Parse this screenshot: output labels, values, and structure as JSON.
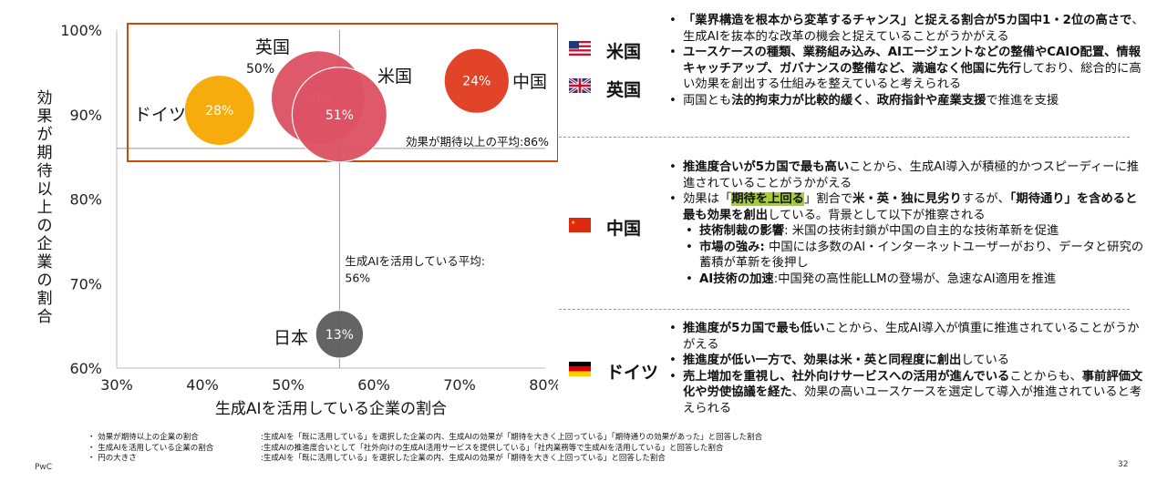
{
  "chart_data": {
    "type": "bubble",
    "xlabel": "生成AIを活用している企業の割合",
    "ylabel": "効果が期待以上の企業の割合",
    "xlim": [
      30,
      80
    ],
    "ylim": [
      60,
      100
    ],
    "x_ticks": [
      "30%",
      "40%",
      "50%",
      "60%",
      "70%",
      "80%"
    ],
    "y_ticks": [
      "60%",
      "70%",
      "80%",
      "90%",
      "100%"
    ],
    "points": [
      {
        "name": "ドイツ",
        "x": 42,
        "y": 90.5,
        "value": 28,
        "value_label": "28%",
        "color": "#f5a800"
      },
      {
        "name": "英国",
        "x": 53.5,
        "y": 92,
        "value": 50,
        "value_label": "50%",
        "color": "#dd5264"
      },
      {
        "name": "米国",
        "x": 56,
        "y": 90,
        "value": 51,
        "value_label": "51%",
        "color": "#dd5264"
      },
      {
        "name": "中国",
        "x": 72,
        "y": 94,
        "value": 24,
        "value_label": "24%",
        "color": "#e03a1e"
      },
      {
        "name": "日本",
        "x": 56,
        "y": 64,
        "value": 13,
        "value_label": "13%",
        "color": "#5c5c5c"
      }
    ],
    "avg_y": {
      "value": 86,
      "label": "効果が期待以上の平均:86%"
    },
    "avg_x": {
      "value": 56,
      "label_line1": "生成AIを活用している平均:",
      "label_line2": "56%"
    },
    "highlight_box_color": "#d04a02"
  },
  "right_panel": {
    "us": {
      "name": "米国"
    },
    "uk": {
      "name": "英国"
    },
    "cn": {
      "name": "中国"
    },
    "de": {
      "name": "ドイツ"
    },
    "us_uk_bullets": {
      "b1_bold": "「業界構造を根本から変革するチャンス」と捉える割合が5カ国中1・2位の高さで",
      "b1_rest": "、生成AIを抜本的な改革の機会と捉えていることがうかがえる",
      "b2_bold": "ユースケースの種類、業務組み込み、AIエージェントなどの整備やCAIO配置、情報キャッチアップ、ガバナンスの整備など、満遍なく他国に先行",
      "b2_rest": "しており、総合的に高い効果を創出する仕組みを整えていると考えられる",
      "b3_pre": "両国とも",
      "b3_bold1": "法的拘束力が比較的緩く",
      "b3_mid": "、",
      "b3_bold2": "政府指針や産業支援",
      "b3_end": "で推進を支援"
    },
    "cn_bullets": {
      "b1_bold": "推進度合いが5カ国で最も高い",
      "b1_rest": "ことから、生成AI導入が積極的かつスピーディーに推進されていることがうかがえる",
      "b2_pre": "効果は「",
      "b2_hl": "期待を上回る",
      "b2_mid": "」割合で",
      "b2_bold1": "米・英・独に見劣り",
      "b2_mid2": "するが、",
      "b2_bold2": "「期待通り」を含めると最も効果を創出",
      "b2_end": "している。背景として以下が推察される",
      "s1_bold": "技術制裁の影響",
      "s1_rest": ": 米国の技術封鎖が中国の自主的な技術革新を促進",
      "s2_bold": "市場の強み:",
      "s2_rest": " 中国には多数のAI・インターネットユーザーがおり、データと研究の蓄積が革新を後押し",
      "s3_bold": "AI技術の加速",
      "s3_rest": ":中国発の高性能LLMの登場が、急速なAI適用を推進"
    },
    "de_bullets": {
      "b1_bold": "推進度が5カ国で最も低い",
      "b1_rest": "ことから、生成AI導入が慎重に推進されていることがうかがえる",
      "b2_bold": "推進度が低い一方で、効果は米・英と同程度に創出",
      "b2_rest": "している",
      "b3_bold1": "売上増加を重視し、社外向けサービスへの活用が進んでいる",
      "b3_mid": "ことからも、",
      "b3_bold2": "事前評価文化や労使協議を経た",
      "b3_end": "、効果の高いユースケースを選定して導入が推進されていると考えられる"
    }
  },
  "footnotes": [
    {
      "key": "・ 効果が期待以上の企業の割合",
      "value": ":生成AIを「既に活用している」を選択した企業の内、生成AIの効果が「期待を大きく上回っている」「期待通りの効果があった」と回答した割合"
    },
    {
      "key": "・ 生成AIを活用している企業の割合",
      "value": ":生成AIの推進度合いとして「社外向けの生成AI活用サービスを提供している」「社内業務等で生成AIを活用している」と回答した割合"
    },
    {
      "key": "・ 円の大きさ",
      "value": ":生成AIを「既に活用している」を選択した企業の内、生成AIの効果が「期待を大きく上回っている」と回答した割合"
    }
  ],
  "footer": {
    "brand": "PwC",
    "page": "32"
  }
}
